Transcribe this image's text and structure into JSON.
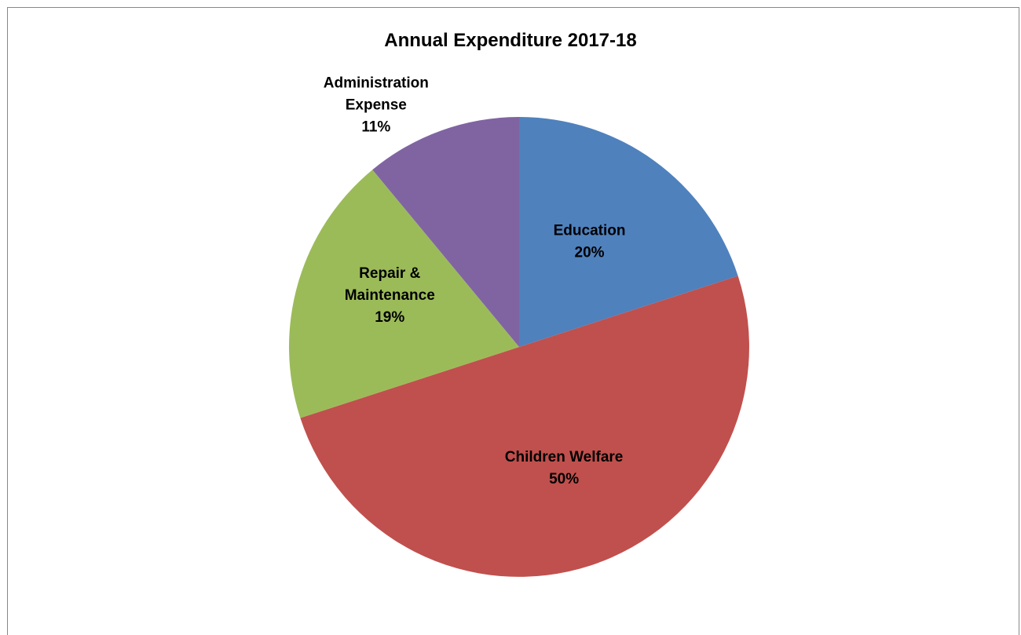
{
  "chart_data": {
    "type": "pie",
    "title": "Annual Expenditure 2017-18",
    "slices": [
      {
        "name": "Education",
        "value": 20,
        "label_lines": [
          "Education",
          "20%"
        ],
        "color": "#4F81BD"
      },
      {
        "name": "Children Welfare",
        "value": 50,
        "label_lines": [
          "Children Welfare",
          "50%"
        ],
        "color": "#C0504D"
      },
      {
        "name": "Repair & Maintenance",
        "value": 19,
        "label_lines": [
          "Repair &",
          "Maintenance",
          "19%"
        ],
        "color": "#9BBB59"
      },
      {
        "name": "Administration Expense",
        "value": 11,
        "label_lines": [
          "Administration",
          "Expense",
          "11%"
        ],
        "color": "#8064A2"
      }
    ],
    "start_angle_deg": 0,
    "direction": "clockwise",
    "legend": "none"
  }
}
